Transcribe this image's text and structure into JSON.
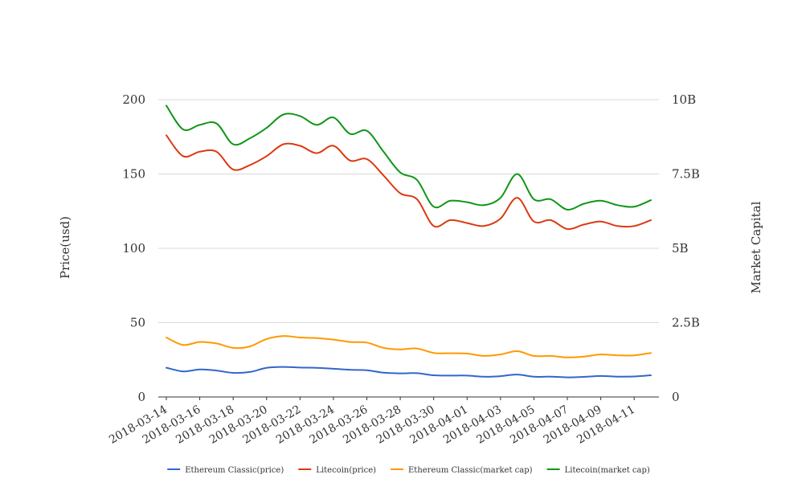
{
  "chart_data": {
    "type": "line",
    "x": [
      "2018-03-14",
      "2018-03-15",
      "2018-03-16",
      "2018-03-17",
      "2018-03-18",
      "2018-03-19",
      "2018-03-20",
      "2018-03-21",
      "2018-03-22",
      "2018-03-23",
      "2018-03-24",
      "2018-03-25",
      "2018-03-26",
      "2018-03-27",
      "2018-03-28",
      "2018-03-29",
      "2018-03-30",
      "2018-03-31",
      "2018-04-01",
      "2018-04-02",
      "2018-04-03",
      "2018-04-04",
      "2018-04-05",
      "2018-04-06",
      "2018-04-07",
      "2018-04-08",
      "2018-04-09",
      "2018-04-10",
      "2018-04-11",
      "2018-04-12"
    ],
    "x_tick_labels": [
      "2018-03-14",
      "2018-03-16",
      "2018-03-18",
      "2018-03-20",
      "2018-03-22",
      "2018-03-24",
      "2018-03-26",
      "2018-03-28",
      "2018-03-30",
      "2018-04-01",
      "2018-04-03",
      "2018-04-05",
      "2018-04-07",
      "2018-04-09",
      "2018-04-11"
    ],
    "ylabel": "Price(usd)",
    "ylabel_right": "Market Capital",
    "ylim": [
      0,
      200
    ],
    "ylim_right": [
      0,
      10000000000
    ],
    "y_ticks": [
      "0",
      "50",
      "100",
      "150",
      "200"
    ],
    "y_ticks_right": [
      "0",
      "2.5B",
      "5B",
      "7.5B",
      "10B"
    ],
    "grid": true,
    "legend_position": "bottom",
    "series": [
      {
        "name": "Ethereum Classic(price)",
        "axis": "left",
        "color": "#3366cc",
        "values": [
          19.7,
          17.2,
          18.5,
          17.8,
          16.2,
          16.8,
          19.6,
          20.2,
          19.8,
          19.6,
          19.0,
          18.3,
          18.0,
          16.3,
          15.9,
          16.0,
          14.6,
          14.4,
          14.4,
          13.6,
          14.0,
          15.1,
          13.6,
          13.7,
          13.2,
          13.5,
          14.1,
          13.7,
          13.8,
          14.6
        ]
      },
      {
        "name": "Litecoin(price)",
        "axis": "left",
        "color": "#dc3912",
        "values": [
          176,
          162,
          165,
          165,
          153,
          156,
          162,
          170,
          169,
          164,
          169,
          159,
          160,
          149,
          137,
          133,
          115,
          119,
          117,
          115,
          120,
          134,
          118,
          119,
          113,
          116,
          118,
          115,
          115,
          119
        ]
      },
      {
        "name": "Ethereum Classic(market cap)",
        "axis": "right",
        "color": "#ff9900",
        "values": [
          2000000000,
          1750000000,
          1850000000,
          1800000000,
          1650000000,
          1700000000,
          1950000000,
          2050000000,
          2000000000,
          1980000000,
          1930000000,
          1850000000,
          1830000000,
          1650000000,
          1600000000,
          1630000000,
          1480000000,
          1470000000,
          1460000000,
          1380000000,
          1430000000,
          1540000000,
          1380000000,
          1380000000,
          1330000000,
          1360000000,
          1430000000,
          1400000000,
          1400000000,
          1480000000
        ]
      },
      {
        "name": "Litecoin(market cap)",
        "axis": "right",
        "color": "#109618",
        "values": [
          9800000000,
          9000000000,
          9150000000,
          9200000000,
          8500000000,
          8700000000,
          9050000000,
          9500000000,
          9450000000,
          9150000000,
          9400000000,
          8850000000,
          8950000000,
          8250000000,
          7550000000,
          7300000000,
          6400000000,
          6600000000,
          6550000000,
          6450000000,
          6700000000,
          7500000000,
          6650000000,
          6650000000,
          6300000000,
          6500000000,
          6600000000,
          6450000000,
          6400000000,
          6620000000
        ]
      }
    ]
  }
}
